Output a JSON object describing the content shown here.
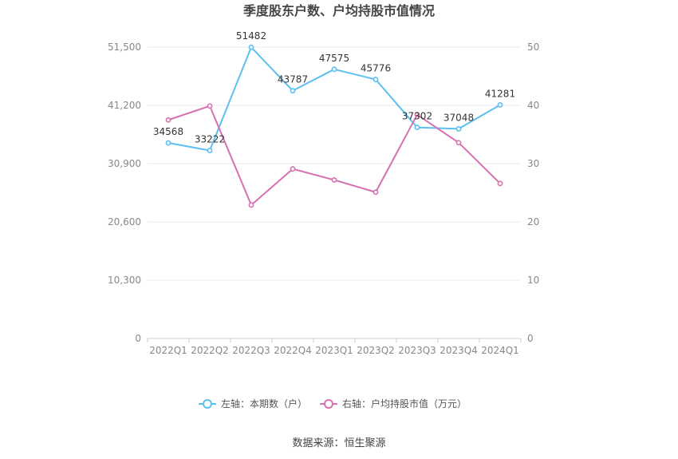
{
  "chart_data": {
    "type": "line",
    "title": "季度股东户数、户均持股市值情况",
    "categories": [
      "2022Q1",
      "2022Q2",
      "2022Q3",
      "2022Q4",
      "2023Q1",
      "2023Q2",
      "2023Q3",
      "2023Q4",
      "2024Q1"
    ],
    "series": [
      {
        "name": "左轴：本期数（户）",
        "axis": "left",
        "color": "#5bc0f0",
        "values": [
          34568,
          33222,
          51482,
          43787,
          47575,
          45776,
          37302,
          37048,
          41281
        ],
        "data_labels": [
          "34568",
          "33222",
          "51482",
          "43787",
          "47575",
          "45776",
          "37302",
          "37048",
          "41281"
        ]
      },
      {
        "name": "右轴：户均持股市值（万元）",
        "axis": "right",
        "color": "#d670b0",
        "values": [
          37.5,
          39.9,
          22.9,
          29.1,
          27.2,
          25.1,
          38.4,
          33.6,
          26.6
        ]
      }
    ],
    "y_left": {
      "min": 0,
      "max": 51500,
      "ticks": [
        0,
        10300,
        20600,
        30900,
        41200,
        51500
      ],
      "tick_labels": [
        "0",
        "10,300",
        "20,600",
        "30,900",
        "41,200",
        "51,500"
      ]
    },
    "y_right": {
      "min": 0,
      "max": 50,
      "ticks": [
        0,
        10,
        20,
        30,
        40,
        50
      ],
      "tick_labels": [
        "0",
        "10",
        "20",
        "30",
        "40",
        "50"
      ]
    },
    "grid": true,
    "legend_position": "bottom"
  },
  "source": "数据来源：恒生聚源"
}
